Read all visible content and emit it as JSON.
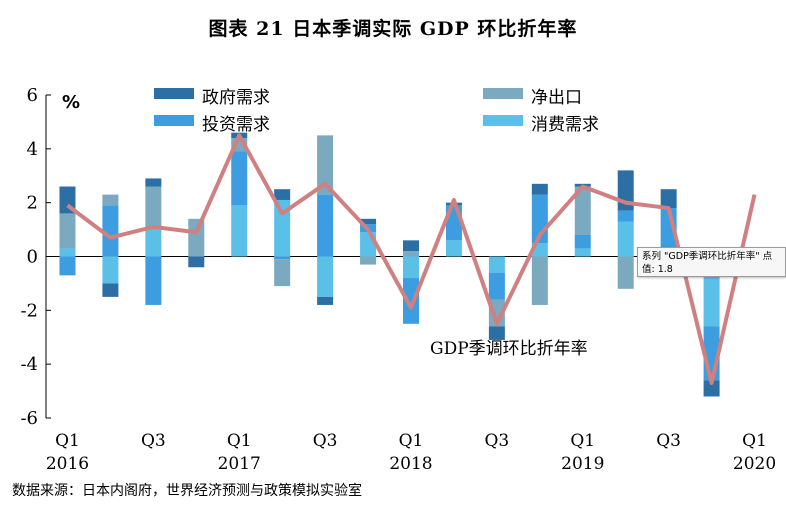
{
  "title": "图表 21    日本季调实际 GDP 环比折年率",
  "source": "数据来源：日本内阁府，世界经济预测与政策模拟实验室",
  "tooltip": {
    "line1": "系列 \"GDP季调环比折年率\" 点",
    "line2": "值: 1.8"
  },
  "chart_data": {
    "type": "bar",
    "stacked": true,
    "ylabel": "%",
    "ylim": [
      -6,
      6
    ],
    "yticks": [
      6,
      4,
      2,
      0,
      -2,
      -4,
      -6
    ],
    "categories": [
      "2016Q1",
      "2016Q2",
      "2016Q3",
      "2016Q4",
      "2017Q1",
      "2017Q2",
      "2017Q3",
      "2017Q4",
      "2018Q1",
      "2018Q2",
      "2018Q3",
      "2018Q4",
      "2019Q1",
      "2019Q2",
      "2019Q3",
      "2019Q4",
      "2020Q1"
    ],
    "x_tick_labels": [
      {
        "index": 0,
        "quarter": "Q1",
        "year": "2016"
      },
      {
        "index": 2,
        "quarter": "Q3",
        "year": ""
      },
      {
        "index": 4,
        "quarter": "Q1",
        "year": "2017"
      },
      {
        "index": 6,
        "quarter": "Q3",
        "year": ""
      },
      {
        "index": 8,
        "quarter": "Q1",
        "year": "2018"
      },
      {
        "index": 10,
        "quarter": "Q3",
        "year": ""
      },
      {
        "index": 12,
        "quarter": "Q1",
        "year": "2019"
      },
      {
        "index": 14,
        "quarter": "Q3",
        "year": ""
      },
      {
        "index": 16,
        "quarter": "Q1",
        "year": "2020"
      }
    ],
    "series": [
      {
        "name": "消费需求",
        "color": "#5bc0e8",
        "values": [
          0.3,
          -1.0,
          1.0,
          0.0,
          1.9,
          2.1,
          -1.5,
          0.9,
          -0.8,
          0.6,
          -0.6,
          0.5,
          0.3,
          1.3,
          0.2,
          -2.6,
          0.0
        ]
      },
      {
        "name": "投资需求",
        "color": "#3c9de0",
        "values": [
          -0.7,
          1.9,
          -1.8,
          0.0,
          2.0,
          -0.1,
          2.3,
          0.3,
          -1.7,
          1.3,
          -1.0,
          1.8,
          0.5,
          0.4,
          1.6,
          -2.0,
          0.0
        ]
      },
      {
        "name": "净出口",
        "color": "#7aa9c0",
        "values": [
          1.3,
          0.4,
          1.6,
          1.4,
          0.5,
          -1.0,
          2.2,
          -0.3,
          0.2,
          0.0,
          -1.0,
          -1.8,
          1.8,
          -1.2,
          -0.7,
          0.0,
          0.0
        ]
      },
      {
        "name": "政府需求",
        "color": "#2c6fa5",
        "values": [
          1.0,
          -0.5,
          0.3,
          -0.4,
          0.2,
          0.4,
          -0.3,
          0.2,
          0.4,
          0.1,
          -0.5,
          0.4,
          0.1,
          1.5,
          0.7,
          -0.6,
          0.0
        ]
      }
    ],
    "line": {
      "name": "GDP季调环比折年率",
      "color": "#d08080",
      "values": [
        1.9,
        0.7,
        1.1,
        0.9,
        4.5,
        1.6,
        2.7,
        1.0,
        -1.9,
        2.1,
        -2.5,
        0.8,
        2.6,
        2.0,
        1.8,
        -4.7,
        2.3
      ]
    },
    "legend": [
      "政府需求",
      "净出口",
      "投资需求",
      "消费需求"
    ],
    "legend_placement": "top",
    "line_label": "GDP季调环比折年率"
  }
}
